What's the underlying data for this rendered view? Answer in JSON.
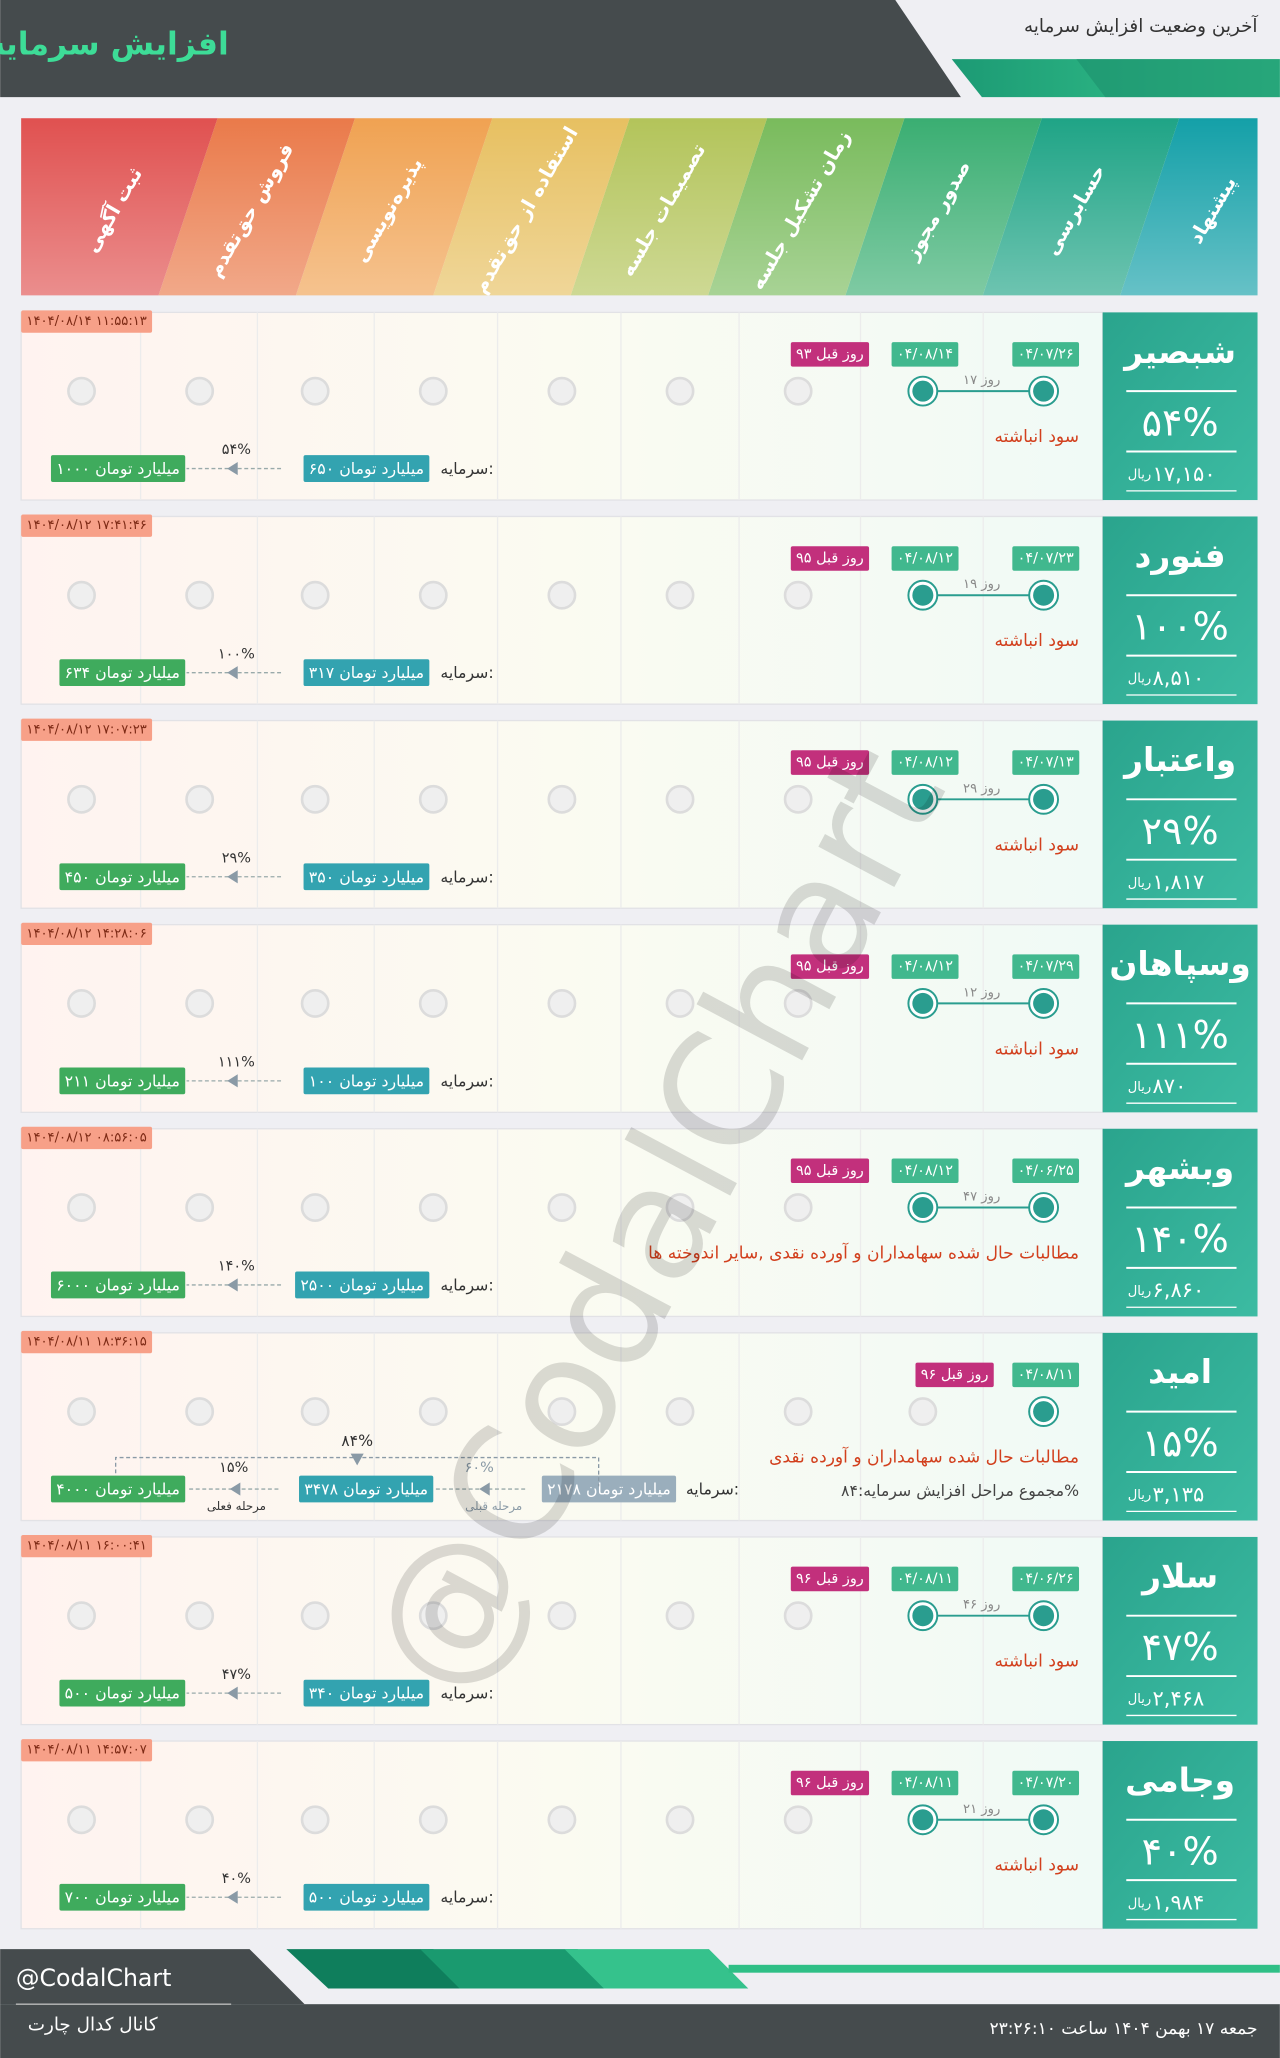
{
  "header": {
    "title": "افزایش سرمایه",
    "subtitle": "آخرین وضعیت افزایش سرمایه"
  },
  "stages": [
    "پیشنهاد",
    "حسابرسی",
    "صدور مجوز",
    "زمان تشکیل جلسه",
    "تصمیمات جلسه",
    "استفاده از حق‌تقدم",
    "پذیره‌نویسی",
    "فروش حق‌تقدم",
    "ثبت آگهی"
  ],
  "rows": [
    {
      "symbol": "شبصیر",
      "percent": "۵۴%",
      "price": "۱۷,۱۵۰",
      "price_unit": "ریال",
      "timestamp": "۱۴۰۴/۰۸/۱۴ ۱۱:۵۵:۱۳",
      "proposal_date": "۰۴/۰۷/۲۶",
      "audit_date": "۰۴/۰۸/۱۴",
      "days_ago": "۹۳ روز قبل",
      "duration": "۱۷ روز",
      "source": "سود انباشته",
      "capital_label": "سرمایه:",
      "capital_before": "۶۵۰ میلیارد تومان",
      "increase": "۵۴%",
      "capital_after": "۱۰۰۰ میلیارد تومان"
    },
    {
      "symbol": "فنورد",
      "percent": "۱۰۰%",
      "price": "۸,۵۱۰",
      "price_unit": "ریال",
      "timestamp": "۱۴۰۴/۰۸/۱۲ ۱۷:۴۱:۴۶",
      "proposal_date": "۰۴/۰۷/۲۳",
      "audit_date": "۰۴/۰۸/۱۲",
      "days_ago": "۹۵ روز قبل",
      "duration": "۱۹ روز",
      "source": "سود انباشته",
      "capital_label": "سرمایه:",
      "capital_before": "۳۱۷ میلیارد تومان",
      "increase": "۱۰۰%",
      "capital_after": "۶۳۴ میلیارد تومان"
    },
    {
      "symbol": "واعتبار",
      "percent": "۲۹%",
      "price": "۱,۸۱۷",
      "price_unit": "ریال",
      "timestamp": "۱۴۰۴/۰۸/۱۲ ۱۷:۰۷:۲۳",
      "proposal_date": "۰۴/۰۷/۱۳",
      "audit_date": "۰۴/۰۸/۱۲",
      "days_ago": "۹۵ روز قبل",
      "duration": "۲۹ روز",
      "source": "سود انباشته",
      "capital_label": "سرمایه:",
      "capital_before": "۳۵۰ میلیارد تومان",
      "increase": "۲۹%",
      "capital_after": "۴۵۰ میلیارد تومان"
    },
    {
      "symbol": "وسپاهان",
      "percent": "۱۱۱%",
      "price": "۸۷۰",
      "price_unit": "ریال",
      "timestamp": "۱۴۰۴/۰۸/۱۲ ۱۴:۲۸:۰۶",
      "proposal_date": "۰۴/۰۷/۲۹",
      "audit_date": "۰۴/۰۸/۱۲",
      "days_ago": "۹۵ روز قبل",
      "duration": "۱۲ روز",
      "source": "سود انباشته",
      "capital_label": "سرمایه:",
      "capital_before": "۱۰۰ میلیارد تومان",
      "increase": "۱۱۱%",
      "capital_after": "۲۱۱ میلیارد تومان"
    },
    {
      "symbol": "وبشهر",
      "percent": "۱۴۰%",
      "price": "۶,۸۶۰",
      "price_unit": "ریال",
      "timestamp": "۱۴۰۴/۰۸/۱۲ ۰۸:۵۶:۰۵",
      "proposal_date": "۰۴/۰۶/۲۵",
      "audit_date": "۰۴/۰۸/۱۲",
      "days_ago": "۹۵ روز قبل",
      "duration": "۴۷ روز",
      "source": "مطالبات حال شده سهامداران و آورده نقدی ,سایر اندوخته ها",
      "capital_label": "سرمایه:",
      "capital_before": "۲۵۰۰ میلیارد تومان",
      "increase": "۱۴۰%",
      "capital_after": "۶۰۰۰ میلیارد تومان"
    },
    {
      "symbol": "امید",
      "percent": "۱۵%",
      "price": "۳,۱۳۵",
      "price_unit": "ریال",
      "timestamp": "۱۴۰۴/۰۸/۱۱ ۱۸:۳۶:۱۵",
      "proposal_date": "۰۴/۰۸/۱۱",
      "days_ago": "۹۶ روز قبل",
      "source": "مطالبات حال شده سهامداران و آورده نقدی",
      "total_note": "مجموع مراحل افزایش سرمایه:۸۴%",
      "capital_label": "سرمایه:",
      "capital_before": "۲۱۷۸ میلیارد تومان",
      "previous_increase": "۶۰%",
      "previous_stage": "مرحله قبلی",
      "capital_middle": "۳۴۷۸ میلیارد تومان",
      "increase": "۱۵%",
      "current_stage": "مرحله فعلی",
      "capital_after": "۴۰۰۰ میلیارد تومان",
      "total_increase": "۸۴%"
    },
    {
      "symbol": "سلار",
      "percent": "۴۷%",
      "price": "۲,۴۶۸",
      "price_unit": "ریال",
      "timestamp": "۱۴۰۴/۰۸/۱۱ ۱۶:۰۰:۴۱",
      "proposal_date": "۰۴/۰۶/۲۶",
      "audit_date": "۰۴/۰۸/۱۱",
      "days_ago": "۹۶ روز قبل",
      "duration": "۴۶ روز",
      "source": "سود انباشته",
      "capital_label": "سرمایه:",
      "capital_before": "۳۴۰ میلیارد تومان",
      "increase": "۴۷%",
      "capital_after": "۵۰۰ میلیارد تومان"
    },
    {
      "symbol": "وجامی",
      "percent": "۴۰%",
      "price": "۱,۹۸۴",
      "price_unit": "ریال",
      "timestamp": "۱۴۰۴/۰۸/۱۱ ۱۴:۵۷:۰۷",
      "proposal_date": "۰۴/۰۷/۲۰",
      "audit_date": "۰۴/۰۸/۱۱",
      "days_ago": "۹۶ روز قبل",
      "duration": "۲۱ روز",
      "source": "سود انباشته",
      "capital_label": "سرمایه:",
      "capital_before": "۵۰۰ میلیارد تومان",
      "increase": "۴۰%",
      "capital_after": "۷۰۰ میلیارد تومان"
    }
  ],
  "footer": {
    "handle": "@CodalChart",
    "channel": "کانال کدال چارت",
    "datetime": "جمعه ۱۷ بهمن ۱۴۰۴ ساعت ۲۳:۲۶:۱۰"
  },
  "watermark": "@CodalChart"
}
